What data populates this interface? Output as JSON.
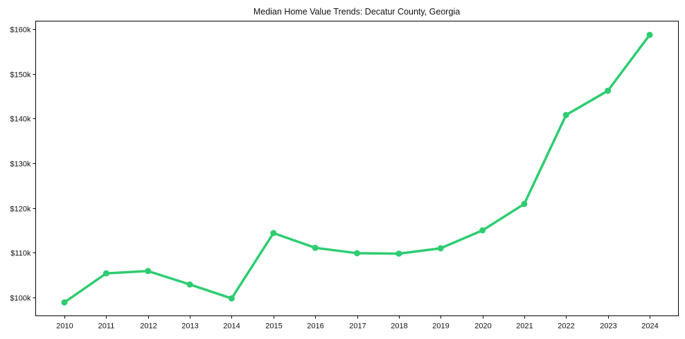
{
  "chart_data": {
    "type": "line",
    "title": "Median Home Value Trends: Decatur County, Georgia",
    "xlabel": "",
    "ylabel": "",
    "x": [
      2010,
      2011,
      2012,
      2013,
      2014,
      2015,
      2016,
      2017,
      2018,
      2019,
      2020,
      2021,
      2022,
      2023,
      2024
    ],
    "series": [
      {
        "name": "Median Home Value",
        "color": "#2ecc71",
        "values": [
          98900,
          105400,
          105900,
          102900,
          99800,
          114400,
          111100,
          109900,
          109800,
          111000,
          115000,
          120900,
          140800,
          146200,
          158700
        ]
      }
    ],
    "ylim": [
      96000,
      162000
    ],
    "yticks": [
      100000,
      110000,
      120000,
      130000,
      140000,
      150000,
      160000
    ],
    "ytick_labels": [
      "$100k",
      "$110k",
      "$120k",
      "$130k",
      "$140k",
      "$150k",
      "$160k"
    ],
    "xtick_labels": [
      "2010",
      "2011",
      "2012",
      "2013",
      "2014",
      "2015",
      "2016",
      "2017",
      "2018",
      "2019",
      "2020",
      "2021",
      "2022",
      "2023",
      "2024"
    ],
    "grid": false,
    "legend": null,
    "markers": true
  }
}
